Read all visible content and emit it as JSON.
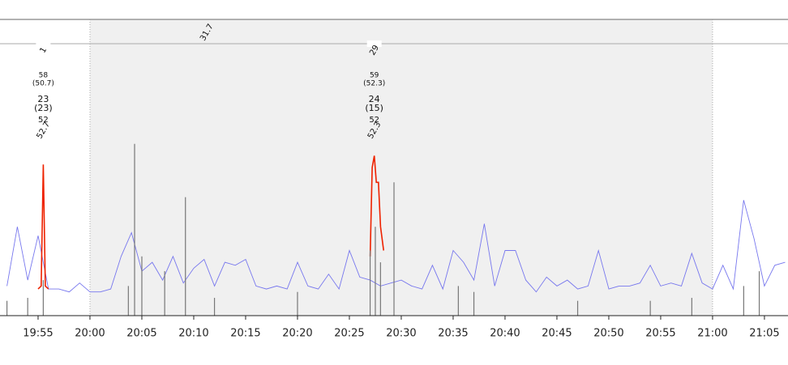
{
  "chart_data": {
    "type": "line",
    "xlim": [
      1191.33,
      1267.27
    ],
    "ylim": [
      0,
      100
    ],
    "span": [
      1200,
      1260
    ],
    "xticks": [
      {
        "value": 1195,
        "label": "19:55"
      },
      {
        "value": 1200,
        "label": "20:00"
      },
      {
        "value": 1205,
        "label": "20:05"
      },
      {
        "value": 1210,
        "label": "20:10"
      },
      {
        "value": 1215,
        "label": "20:15"
      },
      {
        "value": 1220,
        "label": "20:20"
      },
      {
        "value": 1225,
        "label": "20:25"
      },
      {
        "value": 1230,
        "label": "20:30"
      },
      {
        "value": 1235,
        "label": "20:35"
      },
      {
        "value": 1240,
        "label": "20:40"
      },
      {
        "value": 1245,
        "label": "20:45"
      },
      {
        "value": 1250,
        "label": "20:50"
      },
      {
        "value": 1255,
        "label": "20:55"
      },
      {
        "value": 1260,
        "label": "21:00"
      },
      {
        "value": 1265,
        "label": "21:05"
      }
    ],
    "series": [
      {
        "color": "#7777ee",
        "style": "line",
        "x": [
          1192,
          1193,
          1194,
          1195,
          1196,
          1197,
          1198,
          1199,
          1200,
          1201,
          1202,
          1203,
          1204,
          1205,
          1206,
          1207,
          1208,
          1209,
          1210,
          1211,
          1212,
          1213,
          1214,
          1215,
          1216,
          1217,
          1218,
          1219,
          1220,
          1221,
          1222,
          1223,
          1224,
          1225,
          1226,
          1227,
          1228,
          1229,
          1230,
          1231,
          1232,
          1233,
          1234,
          1235,
          1236,
          1237,
          1238,
          1239,
          1240,
          1241,
          1242,
          1243,
          1244,
          1245,
          1246,
          1247,
          1248,
          1249,
          1250,
          1251,
          1252,
          1253,
          1254,
          1255,
          1256,
          1257,
          1258,
          1259,
          1260,
          1261,
          1262,
          1263,
          1264,
          1265,
          1266,
          1267
        ],
        "values": [
          10,
          30,
          12,
          27,
          9,
          9,
          8,
          11,
          8,
          8,
          9,
          20,
          28,
          15,
          18,
          12,
          20,
          11,
          16,
          19,
          10,
          18,
          17,
          19,
          10,
          9,
          10,
          9,
          18,
          10,
          9,
          14,
          9,
          22,
          13,
          12,
          10,
          11,
          12,
          10,
          9,
          17,
          9,
          22,
          18,
          12,
          31,
          10,
          22,
          22,
          12,
          8,
          13,
          10,
          12,
          9,
          10,
          22,
          9,
          10,
          10,
          11,
          17,
          10,
          11,
          10,
          21,
          11,
          9,
          17,
          9,
          39,
          26,
          10,
          17,
          18
        ]
      },
      {
        "color": "#ee2200",
        "style": "line",
        "x": [
          1195.0,
          1195.3,
          1195.5,
          1195.7,
          1196.0,
          null,
          1227.0,
          1227.2,
          1227.4,
          1227.6,
          1227.8,
          1228.0,
          1228.3
        ],
        "values": [
          9,
          10,
          51,
          10,
          9,
          null,
          20,
          50,
          54,
          45,
          45,
          30,
          22
        ]
      },
      {
        "color": "#777777",
        "style": "spike",
        "x": [
          1192,
          1194,
          1195.5,
          1203.7,
          1204.3,
          1205,
          1207.2,
          1209.2,
          1212,
          1220,
          1227,
          1227.5,
          1228,
          1229.3,
          1235.5,
          1237,
          1247,
          1254,
          1258,
          1263,
          1264.5
        ],
        "values": [
          5,
          6,
          12,
          10,
          58,
          20,
          15,
          40,
          6,
          8,
          22,
          30,
          18,
          45,
          10,
          8,
          5,
          5,
          6,
          10,
          15
        ]
      }
    ],
    "annotations": [
      {
        "x": 1195.5,
        "label": "1",
        "lines": [
          "58",
          "(50.7)",
          "23",
          "(23)"
        ],
        "yellow": [
          "52",
          "52.7"
        ]
      },
      {
        "x": 1227.4,
        "label": "29",
        "lines": [
          "59",
          "(52.3)",
          "24",
          "(15)"
        ],
        "yellow": [
          "52",
          "52.3"
        ]
      }
    ],
    "span_label": {
      "x": 1211.25,
      "text": "31.7"
    }
  }
}
